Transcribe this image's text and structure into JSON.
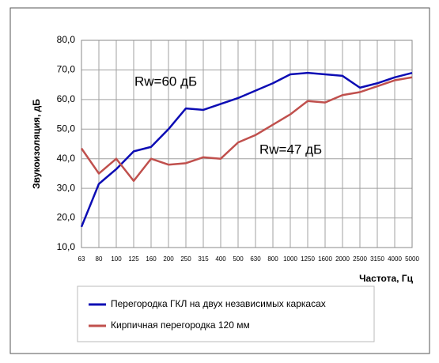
{
  "chart_data": {
    "type": "line",
    "y_label": "Звукоизоляция, дБ",
    "x_label": "Частота, Гц",
    "categories": [
      "63",
      "80",
      "100",
      "125",
      "160",
      "200",
      "250",
      "315",
      "400",
      "500",
      "630",
      "800",
      "1000",
      "1250",
      "1600",
      "2000",
      "2500",
      "3150",
      "4000",
      "5000"
    ],
    "series": [
      {
        "name": "Перегородка ГКЛ на двух независимых каркасах",
        "color": "#0c0cb4",
        "values": [
          17,
          31.5,
          36.5,
          42.5,
          44,
          50,
          57,
          56.5,
          58.5,
          60.5,
          63,
          65.5,
          68.5,
          69,
          68.5,
          68,
          64,
          65.5,
          67.5,
          69
        ]
      },
      {
        "name": "Кирпичная перегородка 120 мм",
        "color": "#c0504d",
        "values": [
          43.5,
          35,
          40,
          32.5,
          40,
          38,
          38.5,
          40.5,
          40,
          45.5,
          48,
          51.5,
          55,
          59.5,
          59,
          61.5,
          62.5,
          64.5,
          66.5,
          67.5
        ]
      }
    ],
    "annotations": [
      {
        "text": "Rw=60 дБ",
        "color": "#3333cc"
      },
      {
        "text": "Rw=47 дБ",
        "color": "#c00000"
      }
    ],
    "ylim": [
      10,
      80
    ],
    "yticks": [
      {
        "value": 10,
        "label": "10,0"
      },
      {
        "value": 20,
        "label": "20,0"
      },
      {
        "value": 30,
        "label": "30,0"
      },
      {
        "value": 40,
        "label": "40,0"
      },
      {
        "value": 50,
        "label": "50,0"
      },
      {
        "value": 60,
        "label": "60,0"
      },
      {
        "value": 70,
        "label": "70,0"
      },
      {
        "value": 80,
        "label": "80,0"
      }
    ],
    "grid": true
  }
}
